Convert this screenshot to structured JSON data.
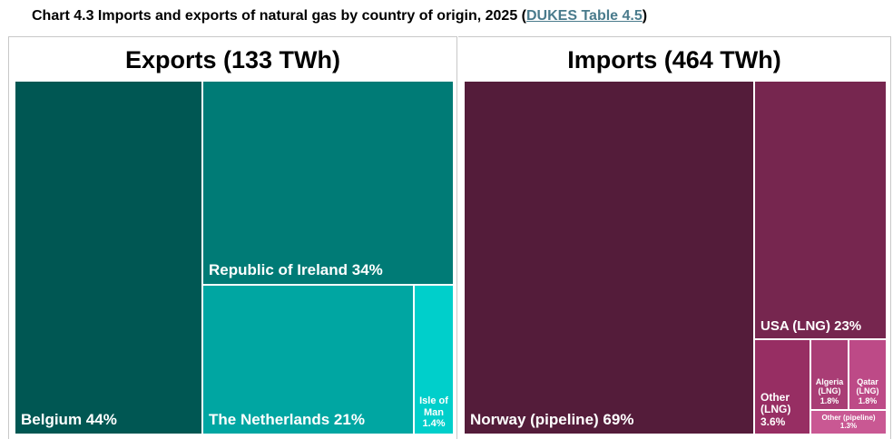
{
  "title": {
    "prefix": "Chart 4.3 Imports and exports of natural gas by country of origin, 2025 (",
    "link": "DUKES Table 4.5",
    "suffix": ")"
  },
  "chart_data": [
    {
      "type": "treemap",
      "title": "Exports (133 TWh)",
      "nodes": [
        {
          "label": "Belgium 44%",
          "value": 44,
          "color": "#005753"
        },
        {
          "label": "Republic of Ireland 34%",
          "value": 34,
          "color": "#007b76"
        },
        {
          "label": "The Netherlands 21%",
          "value": 21,
          "color": "#00a6a2"
        },
        {
          "label": "Isle of Man",
          "pct_label": "1.4%",
          "value": 1.4,
          "color": "#00cfcb"
        }
      ]
    },
    {
      "type": "treemap",
      "title": "Imports (464 TWh)",
      "nodes": [
        {
          "label": "Norway (pipeline) 69%",
          "value": 69,
          "color": "#541c3a"
        },
        {
          "label": "USA (LNG) 23%",
          "value": 23,
          "color": "#76264f"
        },
        {
          "label": "Other (LNG)",
          "pct_label": "3.6%",
          "value": 3.6,
          "color": "#972e63"
        },
        {
          "label": "Algeria (LNG)",
          "pct_label": "1.8%",
          "value": 1.8,
          "color": "#a93d75"
        },
        {
          "label": "Qatar (LNG)",
          "pct_label": "1.8%",
          "value": 1.8,
          "color": "#bd4a87"
        },
        {
          "label": "Other (pipeline)",
          "pct_label": "1.3%",
          "value": 1.3,
          "color": "#c95893"
        }
      ]
    }
  ]
}
